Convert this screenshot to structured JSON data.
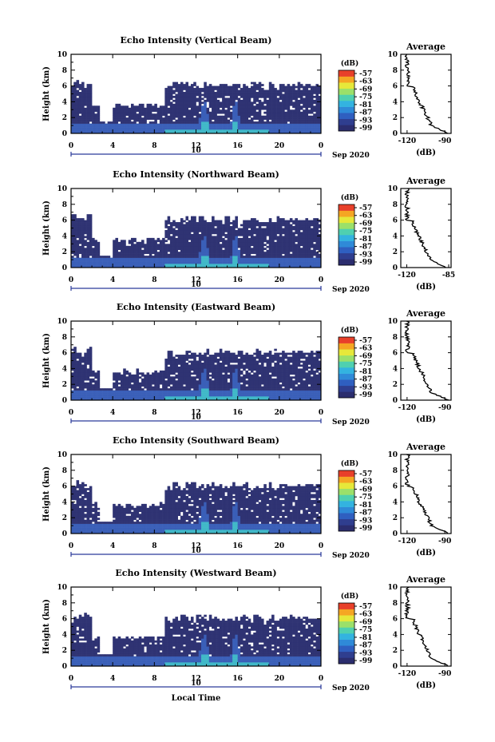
{
  "chart_data": [
    {
      "type": "heatmap",
      "title": "Echo Intensity (Vertical Beam)",
      "ylabel": "Height (km)",
      "xlabel": "",
      "x_ticks": [
        "0",
        "4",
        "8",
        "12",
        "16",
        "20",
        "0"
      ],
      "xlim": [
        0,
        24
      ],
      "y_ticks": [
        "0",
        "2",
        "4",
        "6",
        "8",
        "10"
      ],
      "ylim": [
        0,
        10
      ],
      "date_marker": "10",
      "date_label": "Sep 2020",
      "colorbar": {
        "label": "(dB)",
        "ticks": [
          "-57",
          "-63",
          "-69",
          "-75",
          "-81",
          "-87",
          "-93",
          "-99"
        ]
      },
      "average_profile": {
        "title": "Average",
        "xlabel": "(dB)",
        "x_ticks": [
          "-120",
          "-90"
        ],
        "xlim": [
          -125,
          -85
        ],
        "y_ticks": [
          "0",
          "2",
          "4",
          "6",
          "8",
          "10"
        ]
      }
    },
    {
      "type": "heatmap",
      "title": "Echo Intensity (Northward Beam)",
      "ylabel": "Height (km)",
      "xlabel": "",
      "x_ticks": [
        "0",
        "4",
        "8",
        "12",
        "16",
        "20",
        "0"
      ],
      "xlim": [
        0,
        24
      ],
      "y_ticks": [
        "0",
        "2",
        "4",
        "6",
        "8",
        "10"
      ],
      "ylim": [
        0,
        10
      ],
      "date_marker": "10",
      "date_label": "Sep 2020",
      "colorbar": {
        "label": "(dB)",
        "ticks": [
          "-57",
          "-63",
          "-69",
          "-75",
          "-81",
          "-87",
          "-93",
          "-99"
        ]
      },
      "average_profile": {
        "title": "Average",
        "xlabel": "(dB)",
        "x_ticks": [
          "-120",
          "-85"
        ],
        "xlim": [
          -125,
          -83
        ],
        "y_ticks": [
          "0",
          "2",
          "4",
          "6",
          "8",
          "10"
        ]
      }
    },
    {
      "type": "heatmap",
      "title": "Echo Intensity (Eastward Beam)",
      "ylabel": "Height (km)",
      "xlabel": "",
      "x_ticks": [
        "0",
        "4",
        "8",
        "12",
        "16",
        "20",
        "0"
      ],
      "xlim": [
        0,
        24
      ],
      "y_ticks": [
        "0",
        "2",
        "4",
        "6",
        "8",
        "10"
      ],
      "ylim": [
        0,
        10
      ],
      "date_marker": "10",
      "date_label": "Sep 2020",
      "colorbar": {
        "label": "(dB)",
        "ticks": [
          "-57",
          "-63",
          "-69",
          "-75",
          "-81",
          "-87",
          "-93",
          "-99"
        ]
      },
      "average_profile": {
        "title": "Average",
        "xlabel": "(dB)",
        "x_ticks": [
          "-120",
          "-90"
        ],
        "xlim": [
          -125,
          -85
        ],
        "y_ticks": [
          "0",
          "2",
          "4",
          "6",
          "8",
          "10"
        ]
      }
    },
    {
      "type": "heatmap",
      "title": "Echo Intensity (Southward Beam)",
      "ylabel": "Height (km)",
      "xlabel": "",
      "x_ticks": [
        "0",
        "4",
        "8",
        "12",
        "16",
        "20",
        "0"
      ],
      "xlim": [
        0,
        24
      ],
      "y_ticks": [
        "0",
        "2",
        "4",
        "6",
        "8",
        "10"
      ],
      "ylim": [
        0,
        10
      ],
      "date_marker": "10",
      "date_label": "Sep 2020",
      "colorbar": {
        "label": "(dB)",
        "ticks": [
          "-57",
          "-63",
          "-69",
          "-75",
          "-81",
          "-87",
          "-93",
          "-99"
        ]
      },
      "average_profile": {
        "title": "Average",
        "xlabel": "(dB)",
        "x_ticks": [
          "-120",
          "-90"
        ],
        "xlim": [
          -125,
          -85
        ],
        "y_ticks": [
          "0",
          "2",
          "4",
          "6",
          "8",
          "10"
        ]
      }
    },
    {
      "type": "heatmap",
      "title": "Echo Intensity (Westward Beam)",
      "ylabel": "Height (km)",
      "xlabel": "Local Time",
      "x_ticks": [
        "0",
        "4",
        "8",
        "12",
        "16",
        "20",
        "0"
      ],
      "xlim": [
        0,
        24
      ],
      "y_ticks": [
        "0",
        "2",
        "4",
        "6",
        "8",
        "10"
      ],
      "ylim": [
        0,
        10
      ],
      "date_marker": "10",
      "date_label": "Sep 2020",
      "colorbar": {
        "label": "(dB)",
        "ticks": [
          "-57",
          "-63",
          "-69",
          "-75",
          "-81",
          "-87",
          "-93",
          "-99"
        ]
      },
      "average_profile": {
        "title": "Average",
        "xlabel": "(dB)",
        "x_ticks": [
          "-120",
          "-90"
        ],
        "xlim": [
          -125,
          -85
        ],
        "y_ticks": [
          "0",
          "2",
          "4",
          "6",
          "8",
          "10"
        ]
      }
    }
  ],
  "colors": {
    "colorbar_stops": [
      "#2b2d6e",
      "#2f3e8f",
      "#2f5fc0",
      "#2f8ad8",
      "#33b3e0",
      "#4fd0b0",
      "#9be06a",
      "#e6e83a",
      "#f5a623",
      "#e8402a"
    ],
    "field_low": "#2f3373",
    "field_mid": "#3a5fb8",
    "field_high": "#40b8c8",
    "date_bar": "#2a3a9a",
    "profile_line": "#000000"
  }
}
